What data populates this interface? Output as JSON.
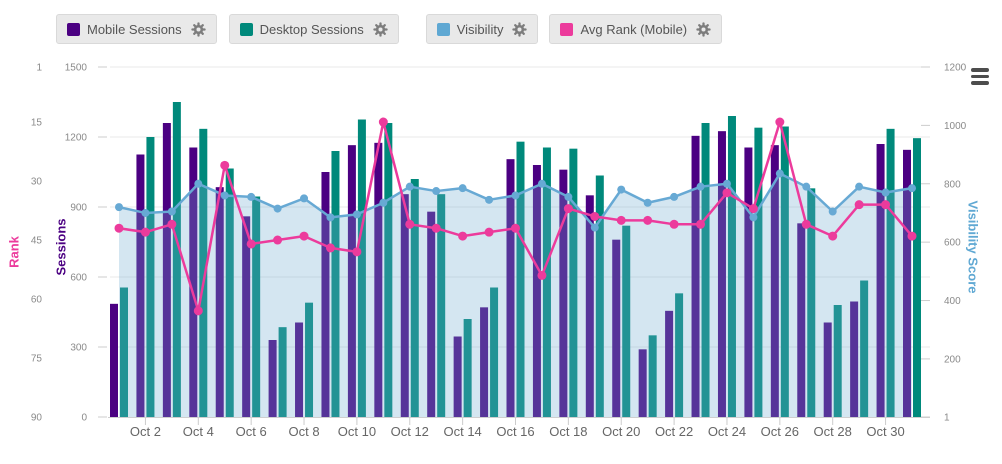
{
  "legend": {
    "items": [
      {
        "label": "Mobile Sessions",
        "color": "#4B0082"
      },
      {
        "label": "Desktop Sessions",
        "color": "#00897B"
      },
      {
        "label": "Visibility",
        "color": "#5FA8D3"
      },
      {
        "label": "Avg Rank (Mobile)",
        "color": "#EC3B9C"
      }
    ]
  },
  "menu_icon": "hamburger-menu",
  "axes": {
    "rank": {
      "title": "Rank",
      "color": "#EC3B9C",
      "min": 1,
      "max": 90,
      "ticks": [
        1,
        15,
        30,
        45,
        60,
        75,
        90
      ],
      "inverted": true
    },
    "sessions": {
      "title": "Sessions",
      "color": "#4B0082",
      "min": 0,
      "max": 1500,
      "ticks": [
        1500,
        1200,
        900,
        600,
        300,
        0
      ]
    },
    "visibility": {
      "title": "Visibility Score",
      "color": "#5FA8D3",
      "min": 1,
      "max": 1200,
      "ticks": [
        1200,
        1000,
        800,
        600,
        400,
        200,
        1
      ]
    }
  },
  "chart_data": {
    "type": "combo",
    "grid": true,
    "legend_position": "top",
    "categories": [
      "Oct 1",
      "Oct 2",
      "Oct 3",
      "Oct 4",
      "Oct 5",
      "Oct 6",
      "Oct 7",
      "Oct 8",
      "Oct 9",
      "Oct 10",
      "Oct 11",
      "Oct 12",
      "Oct 13",
      "Oct 14",
      "Oct 15",
      "Oct 16",
      "Oct 17",
      "Oct 18",
      "Oct 19",
      "Oct 20",
      "Oct 21",
      "Oct 22",
      "Oct 23",
      "Oct 24",
      "Oct 25",
      "Oct 26",
      "Oct 27",
      "Oct 28",
      "Oct 29",
      "Oct 30",
      "Oct 31"
    ],
    "x_axis_labels_shown": [
      "Oct 2",
      "Oct 4",
      "Oct 6",
      "Oct 8",
      "Oct 10",
      "Oct 12",
      "Oct 14",
      "Oct 16",
      "Oct 18",
      "Oct 20",
      "Oct 22",
      "Oct 24",
      "Oct 26",
      "Oct 28",
      "Oct 30"
    ],
    "series": [
      {
        "name": "Mobile Sessions",
        "type": "bar",
        "y_axis": "sessions",
        "color": "#4B0082",
        "values": [
          485,
          1125,
          1260,
          1155,
          985,
          860,
          330,
          405,
          1050,
          1165,
          1175,
          955,
          880,
          345,
          470,
          1105,
          1080,
          1060,
          950,
          760,
          290,
          455,
          1205,
          1225,
          1155,
          1165,
          830,
          405,
          495,
          1170,
          1145
        ]
      },
      {
        "name": "Desktop Sessions",
        "type": "bar",
        "y_axis": "sessions",
        "color": "#00897B",
        "values": [
          555,
          1200,
          1350,
          1235,
          1065,
          945,
          385,
          490,
          1140,
          1275,
          1260,
          1020,
          955,
          420,
          555,
          1180,
          1155,
          1150,
          1035,
          820,
          350,
          530,
          1260,
          1290,
          1240,
          1245,
          980,
          480,
          585,
          1235,
          1195
        ]
      },
      {
        "name": "Visibility",
        "type": "area",
        "y_axis": "visibility",
        "color": "#67A9D4",
        "fill": "rgba(112,172,208,0.30)",
        "values": [
          720,
          700,
          705,
          800,
          760,
          755,
          715,
          750,
          685,
          695,
          735,
          790,
          775,
          785,
          745,
          760,
          800,
          755,
          650,
          780,
          735,
          755,
          790,
          800,
          685,
          835,
          790,
          705,
          790,
          770,
          785
        ]
      },
      {
        "name": "Avg Rank (Mobile)",
        "type": "line",
        "y_axis": "rank",
        "color": "#EC3B9C",
        "values": [
          42,
          43,
          41,
          63,
          26,
          46,
          45,
          44,
          47,
          48,
          15,
          41,
          42,
          44,
          43,
          42,
          54,
          37,
          39,
          40,
          40,
          41,
          41,
          33,
          37,
          15,
          41,
          44,
          36,
          36,
          44
        ]
      }
    ]
  }
}
